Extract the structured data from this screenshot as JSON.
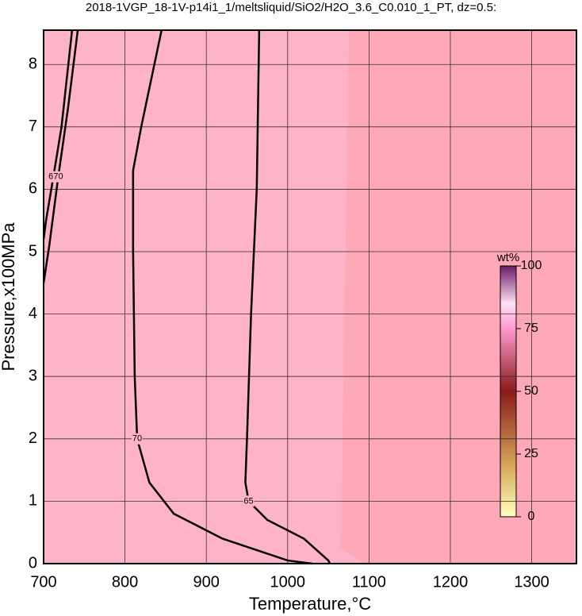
{
  "chart_data": {
    "type": "contour",
    "title": "2018-1VGP_18-1V-p14i1_1/meltsliquid/SiO2/H2O_3.6_C0.010_1_PT, dz=0.5:",
    "x_label": "Temperature,°C",
    "y_label": "Pressure,x100MPa",
    "xlim": [
      700,
      1355
    ],
    "ylim": [
      0,
      8.55
    ],
    "xticks": [
      700,
      800,
      900,
      1000,
      1100,
      1200,
      1300
    ],
    "yticks": [
      0,
      1,
      2,
      3,
      4,
      5,
      6,
      7,
      8
    ],
    "grid": true,
    "contours": [
      {
        "level": 70,
        "x": [
          845,
          820,
          810,
          810,
          812,
          815,
          830,
          860,
          920,
          1000,
          1030
        ],
        "y": [
          8.55,
          7,
          6.3,
          5,
          3,
          2,
          1.3,
          0.8,
          0.4,
          0.05,
          0
        ]
      },
      {
        "level": 65,
        "x": [
          965,
          962,
          955,
          950,
          948,
          952,
          975,
          1020,
          1050,
          1052
        ],
        "y": [
          8.55,
          6,
          4,
          2,
          1.3,
          1,
          0.7,
          0.4,
          0.05,
          0
        ]
      },
      {
        "level": 65,
        "x": [
          735,
          722,
          712,
          703,
          700
        ],
        "y": [
          8.55,
          7,
          6.2,
          5.5,
          5.2
        ]
      },
      {
        "level": 70,
        "x": [
          742,
          730,
          718,
          707,
          700
        ],
        "y": [
          8.55,
          7.3,
          6.2,
          5.1,
          4.5
        ]
      }
    ],
    "colorbar": {
      "label": "wt%",
      "lim": [
        0,
        100
      ],
      "ticks": [
        0,
        25,
        50,
        75,
        100
      ]
    }
  }
}
